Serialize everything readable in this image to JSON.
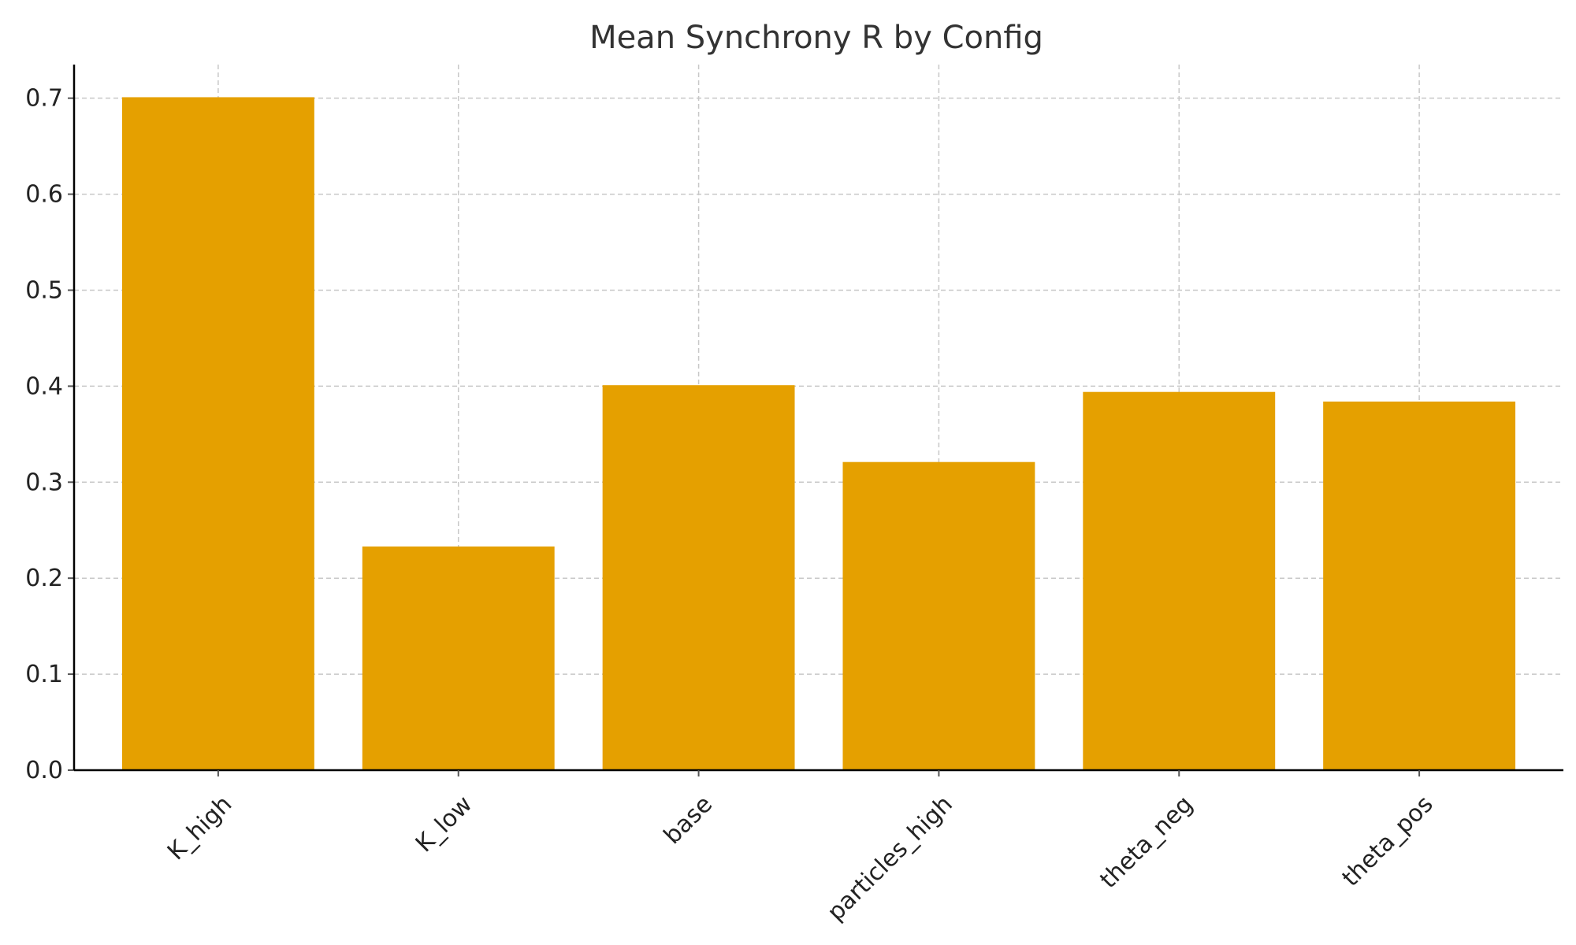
{
  "chart_data": {
    "type": "bar",
    "title": "Mean Synchrony R by Config",
    "xlabel": "",
    "ylabel": "",
    "categories": [
      "K_high",
      "K_low",
      "base",
      "particles_high",
      "theta_neg",
      "theta_pos"
    ],
    "values": [
      0.701,
      0.233,
      0.401,
      0.321,
      0.394,
      0.384
    ],
    "ylim": [
      0,
      0.735
    ],
    "yticks": [
      "0.0",
      "0.1",
      "0.2",
      "0.3",
      "0.4",
      "0.5",
      "0.6",
      "0.7"
    ],
    "grid": true,
    "bar_color": "#E5A000"
  }
}
